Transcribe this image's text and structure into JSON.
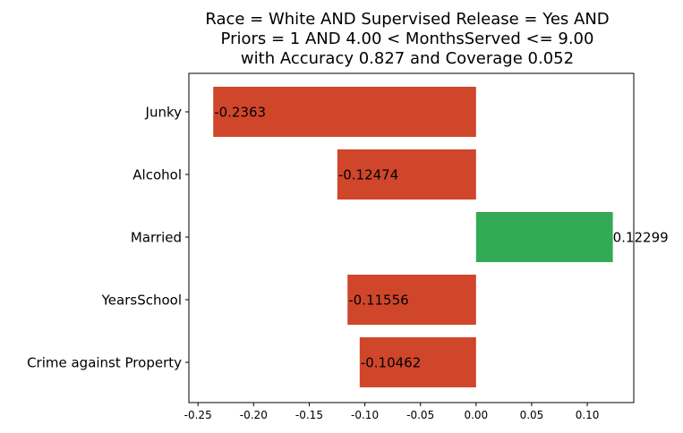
{
  "chart_data": {
    "type": "bar",
    "orientation": "horizontal",
    "title_lines": [
      "Race = White AND Supervised Release = Yes AND",
      "Priors = 1 AND 4.00 < MonthsServed <= 9.00",
      "with Accuracy 0.827 and Coverage 0.052"
    ],
    "categories": [
      "Junky",
      "Alcohol",
      "Married",
      "YearsSchool",
      "Crime against Property"
    ],
    "values": [
      -0.2363,
      -0.12474,
      0.12299,
      -0.11556,
      -0.10462
    ],
    "value_labels": [
      "-0.2363",
      "-0.12474",
      "0.12299",
      "-0.11556",
      "-0.10462"
    ],
    "xlim": [
      -0.2582,
      0.1418
    ],
    "xticks": [
      -0.25,
      -0.2,
      -0.15,
      -0.1,
      -0.05,
      0.0,
      0.05,
      0.1
    ],
    "xtick_labels": [
      "-0.25",
      "-0.20",
      "-0.15",
      "-0.10",
      "-0.05",
      "0.00",
      "0.05",
      "0.10"
    ],
    "xlabel": "",
    "ylabel": "",
    "grid": false,
    "colors": {
      "negative": "#d0462b",
      "positive": "#33aa55"
    }
  }
}
